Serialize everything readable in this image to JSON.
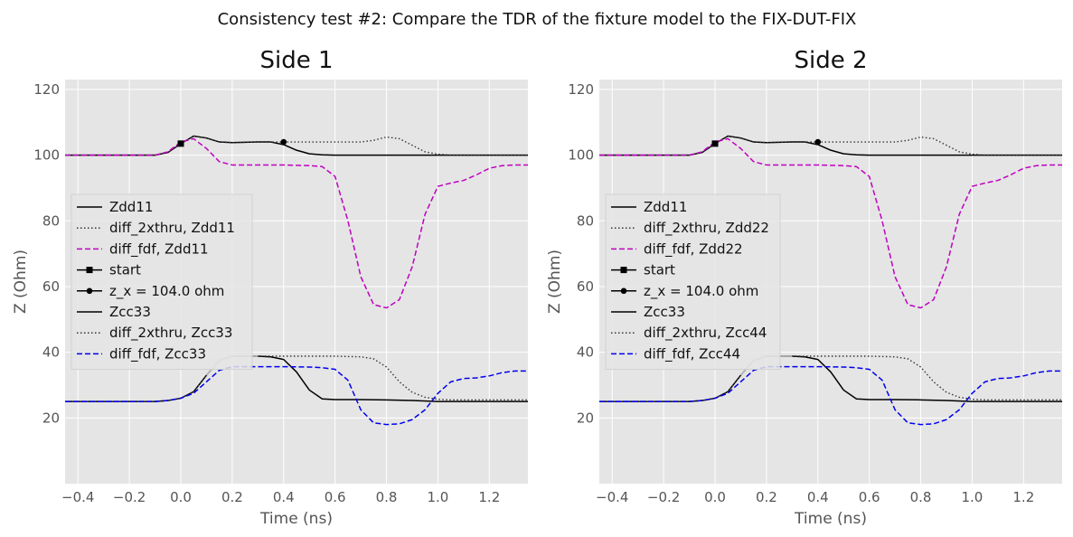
{
  "figure": {
    "suptitle": "Consistency test #2: Compare the TDR of the fixture model to the FIX-DUT-FIX"
  },
  "colors": {
    "panel_bg": "#e5e5e5",
    "grid": "#ffffff",
    "tick_text": "#555555",
    "gray_line": "#bbbbbb"
  },
  "chart_data": [
    {
      "type": "line",
      "title": "Side 1",
      "xlabel": "Time (ns)",
      "ylabel": "Z (Ohm)",
      "xlim": [
        -0.45,
        1.35
      ],
      "ylim": [
        0,
        123
      ],
      "xticks": [
        -0.4,
        -0.2,
        0.0,
        0.2,
        0.4,
        0.6,
        0.8,
        1.0,
        1.2
      ],
      "xtick_labels": [
        "−0.4",
        "−0.2",
        "0.0",
        "0.2",
        "0.4",
        "0.6",
        "0.8",
        "1.0",
        "1.2"
      ],
      "yticks": [
        20,
        40,
        60,
        80,
        100,
        120
      ],
      "ytick_labels": [
        "20",
        "40",
        "60",
        "80",
        "100",
        "120"
      ],
      "grid": true,
      "legend_position": "center-left",
      "series": [
        {
          "name": "Zdd11",
          "color": "#000000",
          "style": "solid",
          "legend": true,
          "x": [
            -0.45,
            -0.1,
            -0.05,
            0.0,
            0.05,
            0.1,
            0.15,
            0.2,
            0.25,
            0.3,
            0.35,
            0.4,
            0.45,
            0.5,
            0.55,
            0.6,
            1.35
          ],
          "y": [
            100,
            100,
            100.8,
            103.5,
            105.8,
            105.2,
            104,
            103.8,
            103.9,
            104,
            104,
            103.2,
            101.5,
            100.4,
            100.1,
            100,
            100
          ]
        },
        {
          "name": "diff_2xthru, Zdd11",
          "color": "#333333",
          "style": "dotted",
          "legend": true,
          "x": [
            -0.45,
            -0.1,
            -0.05,
            0.0,
            0.05,
            0.1,
            0.15,
            0.2,
            0.3,
            0.4,
            0.5,
            0.6,
            0.7,
            0.75,
            0.8,
            0.85,
            0.9,
            0.95,
            1.0,
            1.05,
            1.35
          ],
          "y": [
            100,
            100,
            100.8,
            103.5,
            105.8,
            105.2,
            104,
            103.8,
            104,
            104,
            104,
            104,
            104,
            104.5,
            105.5,
            105,
            103,
            101,
            100.3,
            100,
            100
          ]
        },
        {
          "name": "diff_fdf, Zdd11",
          "color": "#c000c0",
          "style": "dashed",
          "legend": true,
          "x": [
            -0.45,
            -0.1,
            -0.05,
            0.0,
            0.05,
            0.1,
            0.15,
            0.2,
            0.3,
            0.4,
            0.5,
            0.55,
            0.6,
            0.65,
            0.7,
            0.75,
            0.8,
            0.85,
            0.9,
            0.95,
            1.0,
            1.05,
            1.1,
            1.15,
            1.2,
            1.25,
            1.3,
            1.35
          ],
          "y": [
            100,
            100,
            101,
            104,
            105,
            102,
            98,
            97,
            97,
            97,
            96.8,
            96.5,
            93.5,
            80,
            63,
            54.5,
            53.5,
            56,
            66,
            82,
            90.5,
            91.5,
            92.3,
            94,
            96,
            96.8,
            97,
            97
          ]
        },
        {
          "name": "start",
          "color": "#000000",
          "style": "solid",
          "marker": "square",
          "legend": true,
          "x": [
            0.0
          ],
          "y": [
            103.5
          ]
        },
        {
          "name": "z_x = 104.0 ohm",
          "color": "#000000",
          "style": "solid",
          "marker": "circle",
          "legend": true,
          "x": [
            0.4
          ],
          "y": [
            104.0
          ]
        },
        {
          "name": "Zcc33",
          "color": "#000000",
          "style": "solid",
          "legend": true,
          "x": [
            -0.45,
            -0.1,
            -0.05,
            0.0,
            0.05,
            0.1,
            0.15,
            0.2,
            0.3,
            0.35,
            0.4,
            0.45,
            0.5,
            0.55,
            0.6,
            0.7,
            0.8,
            0.9,
            1.0,
            1.35
          ],
          "y": [
            25,
            25,
            25.3,
            26,
            28,
            33,
            37.5,
            38.8,
            38.8,
            38.6,
            37.8,
            34,
            28.5,
            25.8,
            25.6,
            25.6,
            25.5,
            25.3,
            25,
            25
          ]
        },
        {
          "name": "diff_2xthru, Zcc33",
          "color": "#333333",
          "style": "dotted",
          "legend": true,
          "x": [
            -0.45,
            -0.1,
            -0.05,
            0.0,
            0.05,
            0.1,
            0.15,
            0.2,
            0.3,
            0.4,
            0.5,
            0.6,
            0.7,
            0.75,
            0.8,
            0.85,
            0.9,
            0.95,
            1.0,
            1.05,
            1.35
          ],
          "y": [
            25,
            25,
            25.3,
            26,
            28,
            33,
            37.5,
            38.8,
            38.8,
            38.8,
            38.8,
            38.8,
            38.6,
            38,
            35.5,
            31,
            27.8,
            26.3,
            25.7,
            25.5,
            25.5
          ]
        },
        {
          "name": "diff_fdf, Zcc33",
          "color": "#0000ee",
          "style": "dashed",
          "legend": true,
          "x": [
            -0.45,
            -0.1,
            -0.05,
            0.0,
            0.05,
            0.1,
            0.15,
            0.2,
            0.3,
            0.4,
            0.5,
            0.55,
            0.6,
            0.65,
            0.7,
            0.75,
            0.8,
            0.85,
            0.9,
            0.95,
            1.0,
            1.05,
            1.1,
            1.15,
            1.2,
            1.25,
            1.3,
            1.35
          ],
          "y": [
            25,
            25,
            25.3,
            26,
            27.5,
            31,
            34.5,
            35.6,
            35.6,
            35.6,
            35.5,
            35.3,
            34.8,
            31.5,
            22.5,
            18.5,
            18,
            18.2,
            19.5,
            22.5,
            27.5,
            31,
            32,
            32.2,
            32.8,
            33.8,
            34.3,
            34.3
          ]
        },
        {
          "name": "",
          "color": "#bbbbbb",
          "style": "solid",
          "legend": false,
          "x": [
            0.1,
            0.15,
            0.2,
            0.25,
            0.3
          ],
          "y": [
            33,
            37.5,
            38.8,
            38.8,
            38.8
          ]
        }
      ]
    },
    {
      "type": "line",
      "title": "Side 2",
      "xlabel": "Time (ns)",
      "ylabel": "Z (Ohm)",
      "xlim": [
        -0.45,
        1.35
      ],
      "ylim": [
        0,
        123
      ],
      "xticks": [
        -0.4,
        -0.2,
        0.0,
        0.2,
        0.4,
        0.6,
        0.8,
        1.0,
        1.2
      ],
      "xtick_labels": [
        "−0.4",
        "−0.2",
        "0.0",
        "0.2",
        "0.4",
        "0.6",
        "0.8",
        "1.0",
        "1.2"
      ],
      "yticks": [
        20,
        40,
        60,
        80,
        100,
        120
      ],
      "ytick_labels": [
        "20",
        "40",
        "60",
        "80",
        "100",
        "120"
      ],
      "grid": true,
      "legend_position": "center-left",
      "series": [
        {
          "name": "Zdd11",
          "color": "#000000",
          "style": "solid",
          "legend": true,
          "x": [
            -0.45,
            -0.1,
            -0.05,
            0.0,
            0.05,
            0.1,
            0.15,
            0.2,
            0.25,
            0.3,
            0.35,
            0.4,
            0.45,
            0.5,
            0.55,
            0.6,
            1.35
          ],
          "y": [
            100,
            100,
            100.8,
            103.5,
            105.8,
            105.2,
            104,
            103.8,
            103.9,
            104,
            104,
            103.2,
            101.5,
            100.4,
            100.1,
            100,
            100
          ]
        },
        {
          "name": "diff_2xthru, Zdd22",
          "color": "#333333",
          "style": "dotted",
          "legend": true,
          "x": [
            -0.45,
            -0.1,
            -0.05,
            0.0,
            0.05,
            0.1,
            0.15,
            0.2,
            0.3,
            0.4,
            0.5,
            0.6,
            0.7,
            0.75,
            0.8,
            0.85,
            0.9,
            0.95,
            1.0,
            1.05,
            1.35
          ],
          "y": [
            100,
            100,
            100.8,
            103.5,
            105.8,
            105.2,
            104,
            103.8,
            104,
            104,
            104,
            104,
            104,
            104.5,
            105.5,
            105,
            103,
            101,
            100.3,
            100,
            100
          ]
        },
        {
          "name": "diff_fdf, Zdd22",
          "color": "#c000c0",
          "style": "dashed",
          "legend": true,
          "x": [
            -0.45,
            -0.1,
            -0.05,
            0.0,
            0.05,
            0.1,
            0.15,
            0.2,
            0.3,
            0.4,
            0.5,
            0.55,
            0.6,
            0.65,
            0.7,
            0.75,
            0.8,
            0.85,
            0.9,
            0.95,
            1.0,
            1.05,
            1.1,
            1.15,
            1.2,
            1.25,
            1.3,
            1.35
          ],
          "y": [
            100,
            100,
            101,
            104,
            105,
            102,
            98,
            97,
            97,
            97,
            96.8,
            96.5,
            93.5,
            80,
            63,
            54.5,
            53.5,
            56,
            66,
            82,
            90.5,
            91.5,
            92.3,
            94,
            96,
            96.8,
            97,
            97
          ]
        },
        {
          "name": "start",
          "color": "#000000",
          "style": "solid",
          "marker": "square",
          "legend": true,
          "x": [
            0.0
          ],
          "y": [
            103.5
          ]
        },
        {
          "name": "z_x = 104.0 ohm",
          "color": "#000000",
          "style": "solid",
          "marker": "circle",
          "legend": true,
          "x": [
            0.4
          ],
          "y": [
            104.0
          ]
        },
        {
          "name": "Zcc33",
          "color": "#000000",
          "style": "solid",
          "legend": true,
          "x": [
            -0.45,
            -0.1,
            -0.05,
            0.0,
            0.05,
            0.1,
            0.15,
            0.2,
            0.3,
            0.35,
            0.4,
            0.45,
            0.5,
            0.55,
            0.6,
            0.7,
            0.8,
            0.9,
            1.0,
            1.35
          ],
          "y": [
            25,
            25,
            25.3,
            26,
            28,
            33,
            37.5,
            38.8,
            38.8,
            38.6,
            37.8,
            34,
            28.5,
            25.8,
            25.6,
            25.6,
            25.5,
            25.3,
            25,
            25
          ]
        },
        {
          "name": "diff_2xthru, Zcc44",
          "color": "#333333",
          "style": "dotted",
          "legend": true,
          "x": [
            -0.45,
            -0.1,
            -0.05,
            0.0,
            0.05,
            0.1,
            0.15,
            0.2,
            0.3,
            0.4,
            0.5,
            0.6,
            0.7,
            0.75,
            0.8,
            0.85,
            0.9,
            0.95,
            1.0,
            1.05,
            1.35
          ],
          "y": [
            25,
            25,
            25.3,
            26,
            28,
            33,
            37.5,
            38.8,
            38.8,
            38.8,
            38.8,
            38.8,
            38.6,
            38,
            35.5,
            31,
            27.8,
            26.3,
            25.7,
            25.5,
            25.5
          ]
        },
        {
          "name": "diff_fdf, Zcc44",
          "color": "#0000ee",
          "style": "dashed",
          "legend": true,
          "x": [
            -0.45,
            -0.1,
            -0.05,
            0.0,
            0.05,
            0.1,
            0.15,
            0.2,
            0.3,
            0.4,
            0.5,
            0.55,
            0.6,
            0.65,
            0.7,
            0.75,
            0.8,
            0.85,
            0.9,
            0.95,
            1.0,
            1.05,
            1.1,
            1.15,
            1.2,
            1.25,
            1.3,
            1.35
          ],
          "y": [
            25,
            25,
            25.3,
            26,
            27.5,
            31,
            34.5,
            35.6,
            35.6,
            35.6,
            35.5,
            35.3,
            34.8,
            31.5,
            22.5,
            18.5,
            18,
            18.2,
            19.5,
            22.5,
            27.5,
            31,
            32,
            32.2,
            32.8,
            33.8,
            34.3,
            34.3
          ]
        },
        {
          "name": "",
          "color": "#bbbbbb",
          "style": "solid",
          "legend": false,
          "x": [
            0.1,
            0.15,
            0.2,
            0.25,
            0.3
          ],
          "y": [
            33,
            37.5,
            38.8,
            38.8,
            38.8
          ]
        }
      ]
    }
  ]
}
